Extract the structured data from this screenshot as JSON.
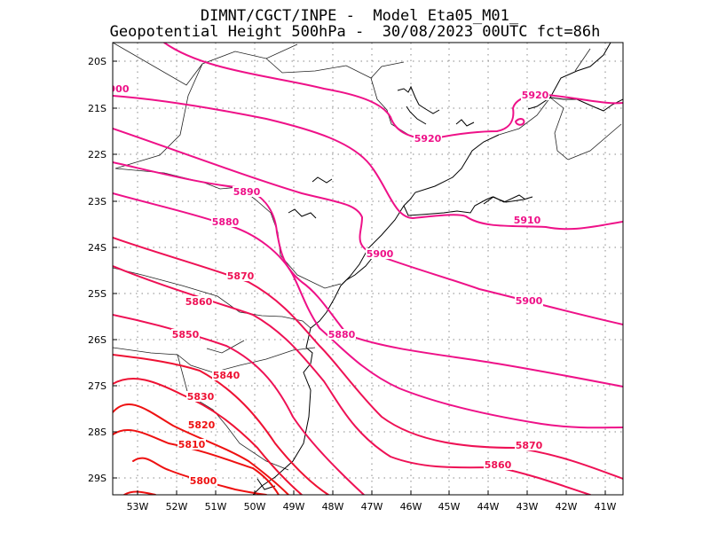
{
  "header": {
    "line1": "DIMNT/CGCT/INPE -  Model Eta05_M01_",
    "line2": "Geopotential Height 500hPa -  30/08/2023 00UTC fct=86h"
  },
  "axes": {
    "lon_labels": [
      "53W",
      "52W",
      "51W",
      "50W",
      "49W",
      "48W",
      "47W",
      "46W",
      "45W",
      "44W",
      "43W",
      "42W",
      "41W"
    ],
    "lat_labels": [
      "20S",
      "21S",
      "22S",
      "23S",
      "24S",
      "25S",
      "26S",
      "27S",
      "28S",
      "29S"
    ]
  },
  "colors": {
    "magenta": "#ee1188",
    "crimson": "#ee1155",
    "red": "#ee1111",
    "coast": "#000000",
    "grid": "#888888"
  },
  "contours": [
    {
      "value": "5920",
      "color": "#ee1188"
    },
    {
      "value": "5910",
      "color": "#ee1188"
    },
    {
      "value": "5900",
      "color": "#ee1188"
    },
    {
      "value": "5890",
      "color": "#ee1188"
    },
    {
      "value": "5880",
      "color": "#ee1188"
    },
    {
      "value": "5870",
      "color": "#ee1155"
    },
    {
      "value": "5860",
      "color": "#ee1155"
    },
    {
      "value": "5850",
      "color": "#ee1155"
    },
    {
      "value": "5840",
      "color": "#ee1133"
    },
    {
      "value": "5830",
      "color": "#ee1133"
    },
    {
      "value": "5820",
      "color": "#ee1111"
    },
    {
      "value": "5810",
      "color": "#ee1111"
    },
    {
      "value": "5800",
      "color": "#ee1111"
    }
  ],
  "labels": [
    {
      "text": "5920",
      "color": "#ee1188"
    },
    {
      "text": "5920",
      "color": "#ee1188"
    },
    {
      "text": "900",
      "color": "#ee1188"
    },
    {
      "text": "5910",
      "color": "#ee1188"
    },
    {
      "text": "5900",
      "color": "#ee1188"
    },
    {
      "text": "5900",
      "color": "#ee1188"
    },
    {
      "text": "5890",
      "color": "#ee1188"
    },
    {
      "text": "5880",
      "color": "#ee1188"
    },
    {
      "text": "5880",
      "color": "#ee1188"
    },
    {
      "text": "5870",
      "color": "#ee1155"
    },
    {
      "text": "5870",
      "color": "#ee1155"
    },
    {
      "text": "5860",
      "color": "#ee1155"
    },
    {
      "text": "5860",
      "color": "#ee1155"
    },
    {
      "text": "5850",
      "color": "#ee1155"
    },
    {
      "text": "5840",
      "color": "#ee1133"
    },
    {
      "text": "5830",
      "color": "#ee1133"
    },
    {
      "text": "5820",
      "color": "#ee1111"
    },
    {
      "text": "5810",
      "color": "#ee1111"
    },
    {
      "text": "5800",
      "color": "#ee1111"
    }
  ]
}
